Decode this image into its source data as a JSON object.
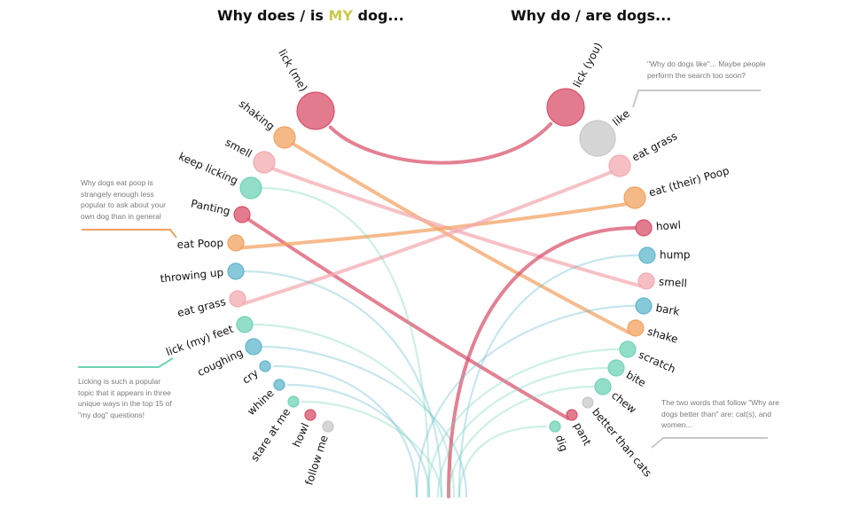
{
  "titles": {
    "left_pre": "Why does / is ",
    "left_highlight": "MY",
    "left_post": " dog...",
    "right": "Why do / are dogs..."
  },
  "colors": {
    "red": "#d94f6a",
    "orange": "#f2a15f",
    "pink": "#f3a9b0",
    "teal": "#6fd3b5",
    "blue": "#5fb6cc",
    "grey": "#c8c8c8",
    "highlight": "#c9c94a"
  },
  "annotations": {
    "poop": "Why dogs eat poop is strangely enough less popular to ask about your own dog than in general",
    "lick": "Licking is such a popular topic that it appears in three unique ways in the top 15 of \"my dog\" questions!",
    "like": "\"Why do dogs like\"... Maybe people perform the search too soon?",
    "better": "The two words that follow \"Why are dogs better than\" are: cat(s), and women..."
  },
  "left_nodes": [
    {
      "label": "lick (me)",
      "size": 5,
      "color": "red"
    },
    {
      "label": "shaking",
      "size": 3,
      "color": "orange"
    },
    {
      "label": "smell",
      "size": 3,
      "color": "pink"
    },
    {
      "label": "keep licking",
      "size": 3,
      "color": "teal"
    },
    {
      "label": "Panting",
      "size": 2,
      "color": "red"
    },
    {
      "label": "eat Poop",
      "size": 2,
      "color": "orange"
    },
    {
      "label": "throwing up",
      "size": 2,
      "color": "blue"
    },
    {
      "label": "eat grass",
      "size": 2,
      "color": "pink"
    },
    {
      "label": "lick (my) feet",
      "size": 2,
      "color": "teal"
    },
    {
      "label": "coughing",
      "size": 2,
      "color": "blue"
    },
    {
      "label": "cry",
      "size": 1,
      "color": "blue"
    },
    {
      "label": "whine",
      "size": 1,
      "color": "blue"
    },
    {
      "label": "stare at me",
      "size": 1,
      "color": "teal"
    },
    {
      "label": "howl",
      "size": 1,
      "color": "red"
    },
    {
      "label": "follow me",
      "size": 1,
      "color": "grey"
    }
  ],
  "right_nodes": [
    {
      "label": "lick (you)",
      "size": 5,
      "color": "red"
    },
    {
      "label": "like",
      "size": 4,
      "color": "grey"
    },
    {
      "label": "eat grass",
      "size": 3,
      "color": "pink"
    },
    {
      "label": "eat (their) Poop",
      "size": 3,
      "color": "orange"
    },
    {
      "label": "howl",
      "size": 2,
      "color": "red"
    },
    {
      "label": "hump",
      "size": 2,
      "color": "blue"
    },
    {
      "label": "smell",
      "size": 2,
      "color": "pink"
    },
    {
      "label": "bark",
      "size": 2,
      "color": "blue"
    },
    {
      "label": "shake",
      "size": 2,
      "color": "orange"
    },
    {
      "label": "scratch",
      "size": 2,
      "color": "teal"
    },
    {
      "label": "bite",
      "size": 2,
      "color": "teal"
    },
    {
      "label": "chew",
      "size": 2,
      "color": "teal"
    },
    {
      "label": "better than cats",
      "size": 1,
      "color": "grey"
    },
    {
      "label": "pant",
      "size": 1,
      "color": "red"
    },
    {
      "label": "dig",
      "size": 1,
      "color": "teal"
    }
  ],
  "links": [
    {
      "from": 0,
      "to": 0,
      "color": "red",
      "strong": true
    },
    {
      "from": 1,
      "to": 8,
      "color": "orange",
      "strong": true
    },
    {
      "from": 2,
      "to": 6,
      "color": "pink",
      "strong": true
    },
    {
      "from": 4,
      "to": 13,
      "color": "red",
      "strong": true
    },
    {
      "from": 5,
      "to": 3,
      "color": "orange",
      "strong": true
    },
    {
      "from": 7,
      "to": 2,
      "color": "pink",
      "strong": true
    },
    {
      "from": 3,
      "to": null,
      "color": "teal",
      "strong": false
    },
    {
      "from": 6,
      "to": null,
      "color": "blue",
      "strong": false
    },
    {
      "from": 8,
      "to": null,
      "color": "teal",
      "strong": false
    },
    {
      "from": 9,
      "to": null,
      "color": "blue",
      "strong": false
    },
    {
      "from": 10,
      "to": null,
      "color": "blue",
      "strong": false
    },
    {
      "from": 11,
      "to": null,
      "color": "blue",
      "strong": false
    },
    {
      "from": 12,
      "to": null,
      "color": "teal",
      "strong": false
    },
    {
      "from": null,
      "to": 4,
      "color": "red",
      "strong": true
    },
    {
      "from": null,
      "to": 5,
      "color": "blue",
      "strong": false
    },
    {
      "from": null,
      "to": 7,
      "color": "blue",
      "strong": false
    },
    {
      "from": null,
      "to": 9,
      "color": "teal",
      "strong": false
    },
    {
      "from": null,
      "to": 10,
      "color": "teal",
      "strong": false
    },
    {
      "from": null,
      "to": 11,
      "color": "teal",
      "strong": false
    },
    {
      "from": null,
      "to": 14,
      "color": "teal",
      "strong": false
    }
  ]
}
